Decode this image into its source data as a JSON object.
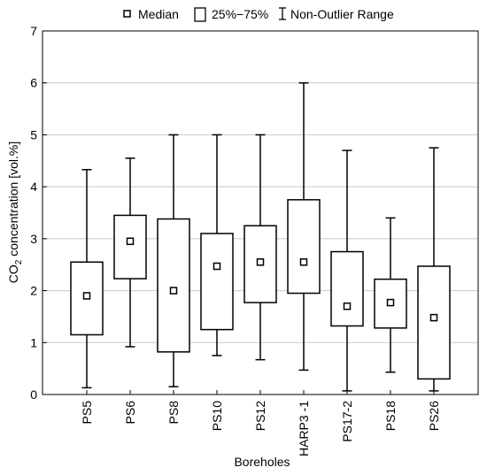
{
  "chart_data": {
    "type": "boxplot",
    "xlabel": "Boreholes",
    "ylabel": {
      "prefix": "CO",
      "subscript": "2",
      "suffix": " concentration [vol.%]"
    },
    "ylim": [
      0,
      7
    ],
    "yticks": [
      0,
      1,
      2,
      3,
      4,
      5,
      6,
      7
    ],
    "grid": "horizontal",
    "legend_position": "top",
    "legend": {
      "median": "Median",
      "box": "25%−75%",
      "whisker": "Non-Outlier Range"
    },
    "categories": [
      "PS5",
      "PS6",
      "PS8",
      "PS10",
      "PS12",
      "HARP3 -1",
      "PS17-2",
      "PS18",
      "PS26"
    ],
    "boxes": [
      {
        "min": 0.13,
        "q1": 1.15,
        "median": 1.9,
        "q3": 2.55,
        "max": 4.33
      },
      {
        "min": 0.92,
        "q1": 2.23,
        "median": 2.95,
        "q3": 3.45,
        "max": 4.55
      },
      {
        "min": 0.15,
        "q1": 0.82,
        "median": 2.0,
        "q3": 3.38,
        "max": 5.0
      },
      {
        "min": 0.75,
        "q1": 1.25,
        "median": 2.47,
        "q3": 3.1,
        "max": 5.0
      },
      {
        "min": 0.67,
        "q1": 1.77,
        "median": 2.55,
        "q3": 3.25,
        "max": 5.0
      },
      {
        "min": 0.47,
        "q1": 1.95,
        "median": 2.55,
        "q3": 3.75,
        "max": 6.0
      },
      {
        "min": 0.07,
        "q1": 1.32,
        "median": 1.7,
        "q3": 2.75,
        "max": 4.7
      },
      {
        "min": 0.43,
        "q1": 1.28,
        "median": 1.77,
        "q3": 2.22,
        "max": 3.4
      },
      {
        "min": 0.07,
        "q1": 0.3,
        "median": 1.48,
        "q3": 2.47,
        "max": 4.75
      }
    ]
  }
}
